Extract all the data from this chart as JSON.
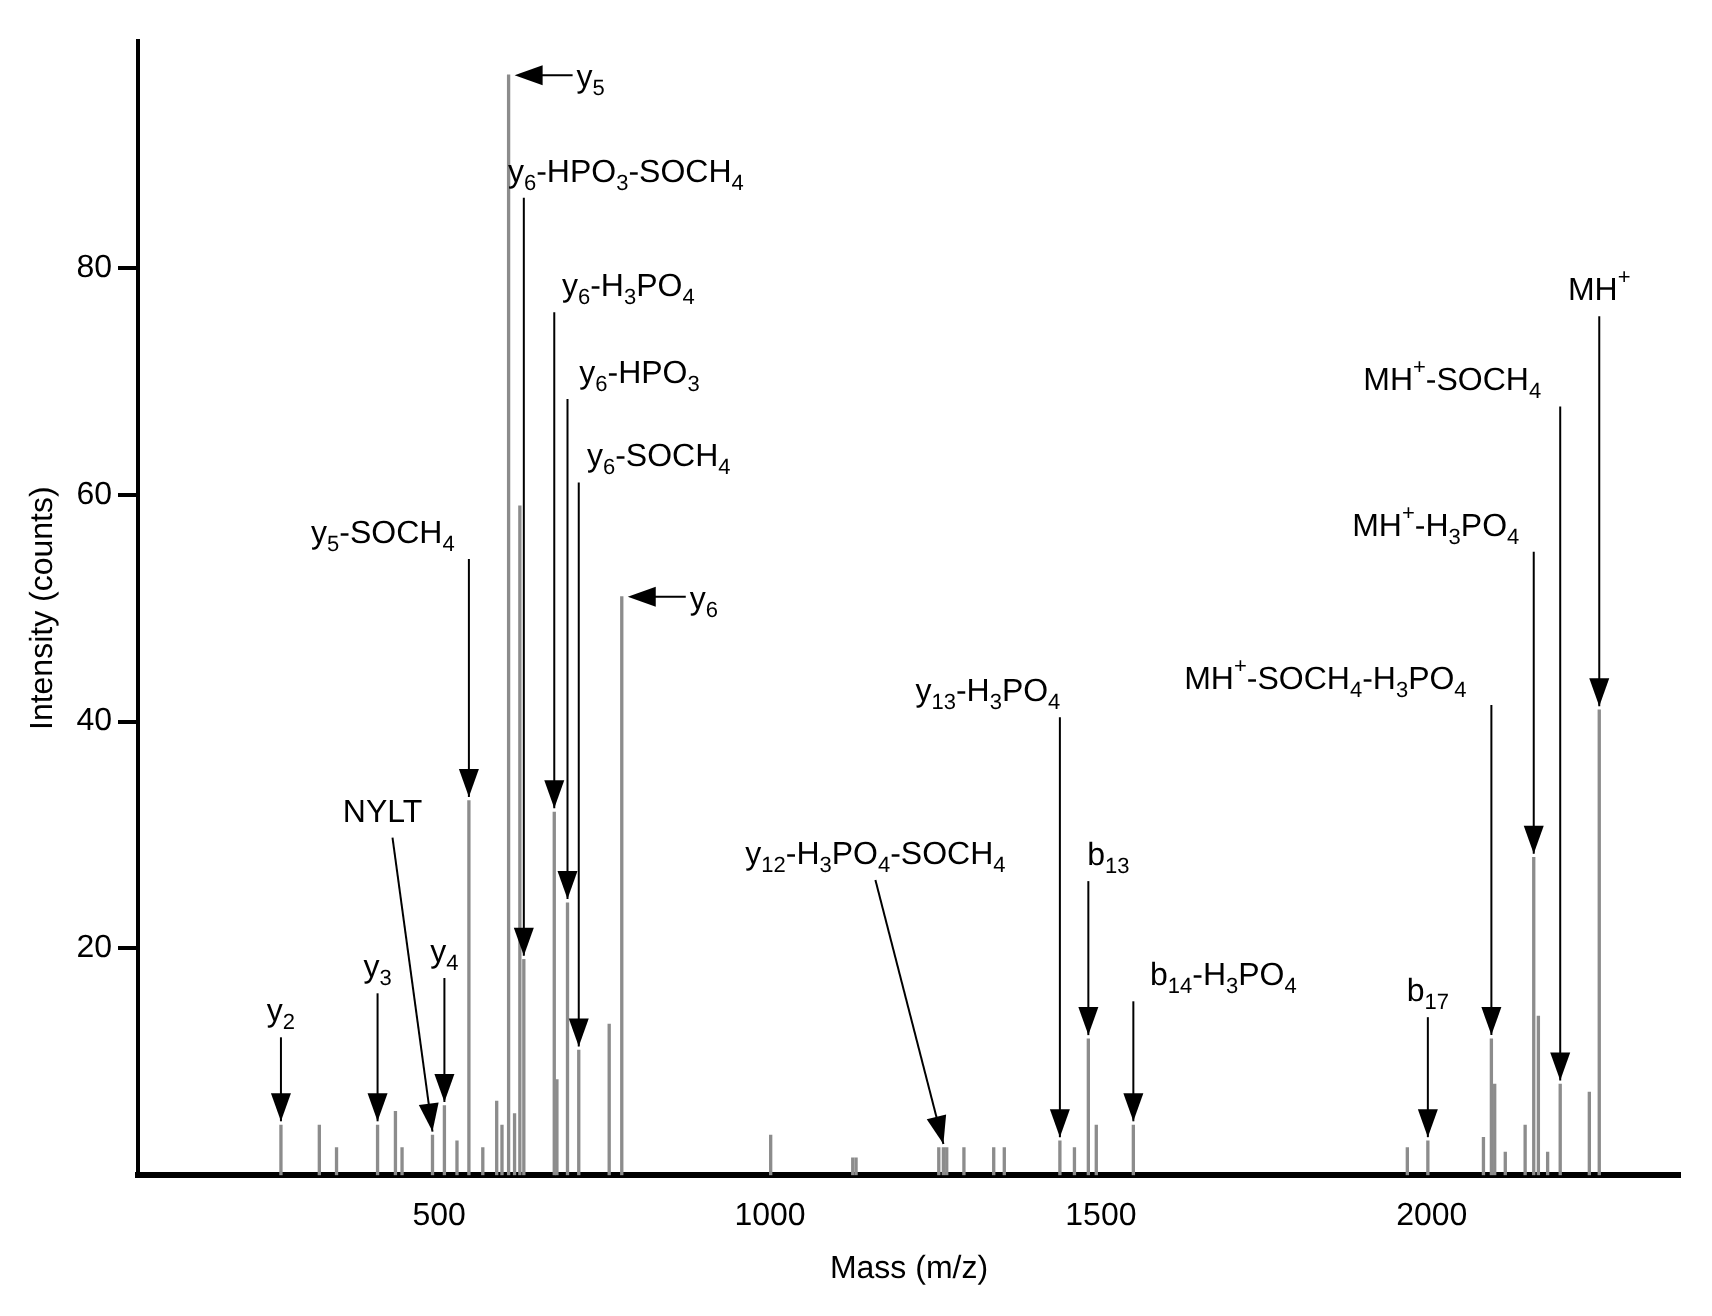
{
  "chart_data": {
    "type": "bar",
    "xlabel": "Mass (m/z)",
    "ylabel": "Intensity (counts)",
    "x": [
      261,
      319,
      345,
      407,
      434,
      444,
      490,
      508,
      527,
      545,
      566,
      587,
      595,
      605,
      614,
      622,
      628,
      674,
      678,
      694,
      711,
      757,
      776,
      1001,
      1125,
      1130,
      1255,
      1262,
      1267,
      1293,
      1338,
      1354,
      1438,
      1460,
      1481,
      1493,
      1549,
      1963,
      1994,
      2078,
      2090,
      2095,
      2111,
      2141,
      2154,
      2161,
      2175,
      2194,
      2238,
      2253
    ],
    "values": [
      4.4,
      4.4,
      2.4,
      4.4,
      5.6,
      2.4,
      3.5,
      6.1,
      3,
      33,
      2.4,
      6.5,
      4.4,
      97,
      5.4,
      59,
      19,
      32,
      8.4,
      24,
      11,
      13.3,
      51,
      3.5,
      1.5,
      1.5,
      2.4,
      2.4,
      2.4,
      2.4,
      2.4,
      2.4,
      3,
      2.4,
      12,
      4.4,
      4.4,
      2.4,
      3,
      3.3,
      12,
      8,
      2,
      4.4,
      28,
      14,
      2,
      8,
      7.3,
      41
    ],
    "color": "#8c8c8c",
    "xlim": [
      45,
      2375
    ],
    "ylim": [
      0,
      100
    ],
    "xticks": [
      500,
      1000,
      1500,
      2000
    ],
    "yticks": [
      20,
      40,
      60,
      80
    ],
    "grid": false,
    "annotations": [
      {
        "text": "y$_{2}$",
        "x": 261,
        "y": 4.4
      },
      {
        "text": "y$_{3}$",
        "x": 407,
        "y": 4.4
      },
      {
        "text": "NYLT",
        "x": 490,
        "y": 3.5
      },
      {
        "text": "y$_{4}$",
        "x": 508,
        "y": 6.1
      },
      {
        "text": "y$_{5}$-SOCH$_{4}$",
        "x": 545,
        "y": 33
      },
      {
        "text": "y$_{5}$",
        "x": 605,
        "y": 97
      },
      {
        "text": "y$_{6}$-HPO$_{3}$-SOCH$_{4}$",
        "x": 628,
        "y": 19
      },
      {
        "text": "y$_{6}$-H$_{3}$PO$_{4}$",
        "x": 674,
        "y": 32
      },
      {
        "text": "y$_{6}$-HPO$_{3}$",
        "x": 694,
        "y": 24
      },
      {
        "text": "y$_{6}$-SOCH$_{4}$",
        "x": 711,
        "y": 11
      },
      {
        "text": "y$_{6}$",
        "x": 776,
        "y": 51
      },
      {
        "text": "y$_{12}$-H$_{3}$PO$_{4}$-SOCH$_{4}$",
        "x": 1262,
        "y": 2.4
      },
      {
        "text": "y$_{13}$-H$_{3}$PO$_{4}$",
        "x": 1438,
        "y": 3
      },
      {
        "text": "b$_{13}$",
        "x": 1481,
        "y": 12
      },
      {
        "text": "b$_{14}$-H$_{3}$PO$_{4}$",
        "x": 1549,
        "y": 4.4
      },
      {
        "text": "b$_{17}$",
        "x": 1994,
        "y": 3
      },
      {
        "text": "MH$^{+}$-SOCH$_{4}$-H$_{3}$PO$_{4}$",
        "x": 2090,
        "y": 12
      },
      {
        "text": "MH$^{+}$-H$_{3}$PO$_{4}$",
        "x": 2154,
        "y": 28
      },
      {
        "text": "MH$^{+}$-SOCH$_{4}$",
        "x": 2194,
        "y": 8
      },
      {
        "text": "MH$^{+}$",
        "x": 2253,
        "y": 41
      }
    ]
  }
}
